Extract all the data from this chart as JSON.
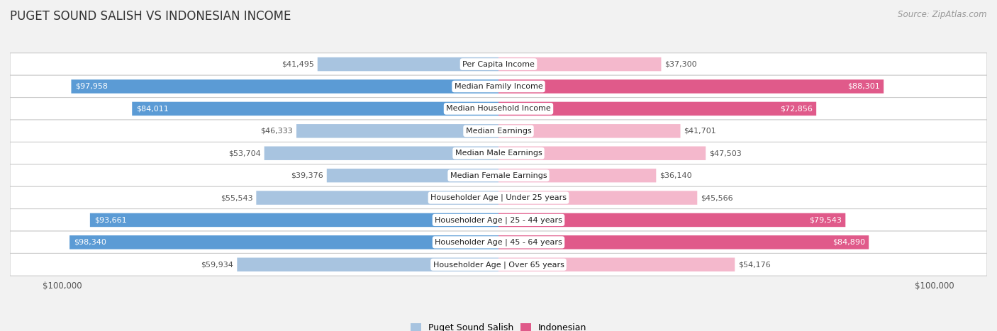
{
  "title": "PUGET SOUND SALISH VS INDONESIAN INCOME",
  "source": "Source: ZipAtlas.com",
  "categories": [
    "Per Capita Income",
    "Median Family Income",
    "Median Household Income",
    "Median Earnings",
    "Median Male Earnings",
    "Median Female Earnings",
    "Householder Age | Under 25 years",
    "Householder Age | 25 - 44 years",
    "Householder Age | 45 - 64 years",
    "Householder Age | Over 65 years"
  ],
  "left_values": [
    41495,
    97958,
    84011,
    46333,
    53704,
    39376,
    55543,
    93661,
    98340,
    59934
  ],
  "right_values": [
    37300,
    88301,
    72856,
    41701,
    47503,
    36140,
    45566,
    79543,
    84890,
    54176
  ],
  "left_labels": [
    "$41,495",
    "$97,958",
    "$84,011",
    "$46,333",
    "$53,704",
    "$39,376",
    "$55,543",
    "$93,661",
    "$98,340",
    "$59,934"
  ],
  "right_labels": [
    "$37,300",
    "$88,301",
    "$72,856",
    "$41,701",
    "$47,503",
    "$36,140",
    "$45,566",
    "$79,543",
    "$84,890",
    "$54,176"
  ],
  "max_value": 100000,
  "left_color_light": "#a8c4e0",
  "left_color_dark": "#5b9bd5",
  "right_color_light": "#f4b8cc",
  "right_color_dark": "#e05a8a",
  "background_color": "#f2f2f2",
  "row_bg_color": "#ffffff",
  "legend_left": "Puget Sound Salish",
  "legend_right": "Indonesian",
  "xlabel_left": "$100,000",
  "xlabel_right": "$100,000",
  "dark_threshold": 70000,
  "title_fontsize": 12,
  "source_fontsize": 8.5,
  "label_fontsize": 8,
  "category_fontsize": 8
}
